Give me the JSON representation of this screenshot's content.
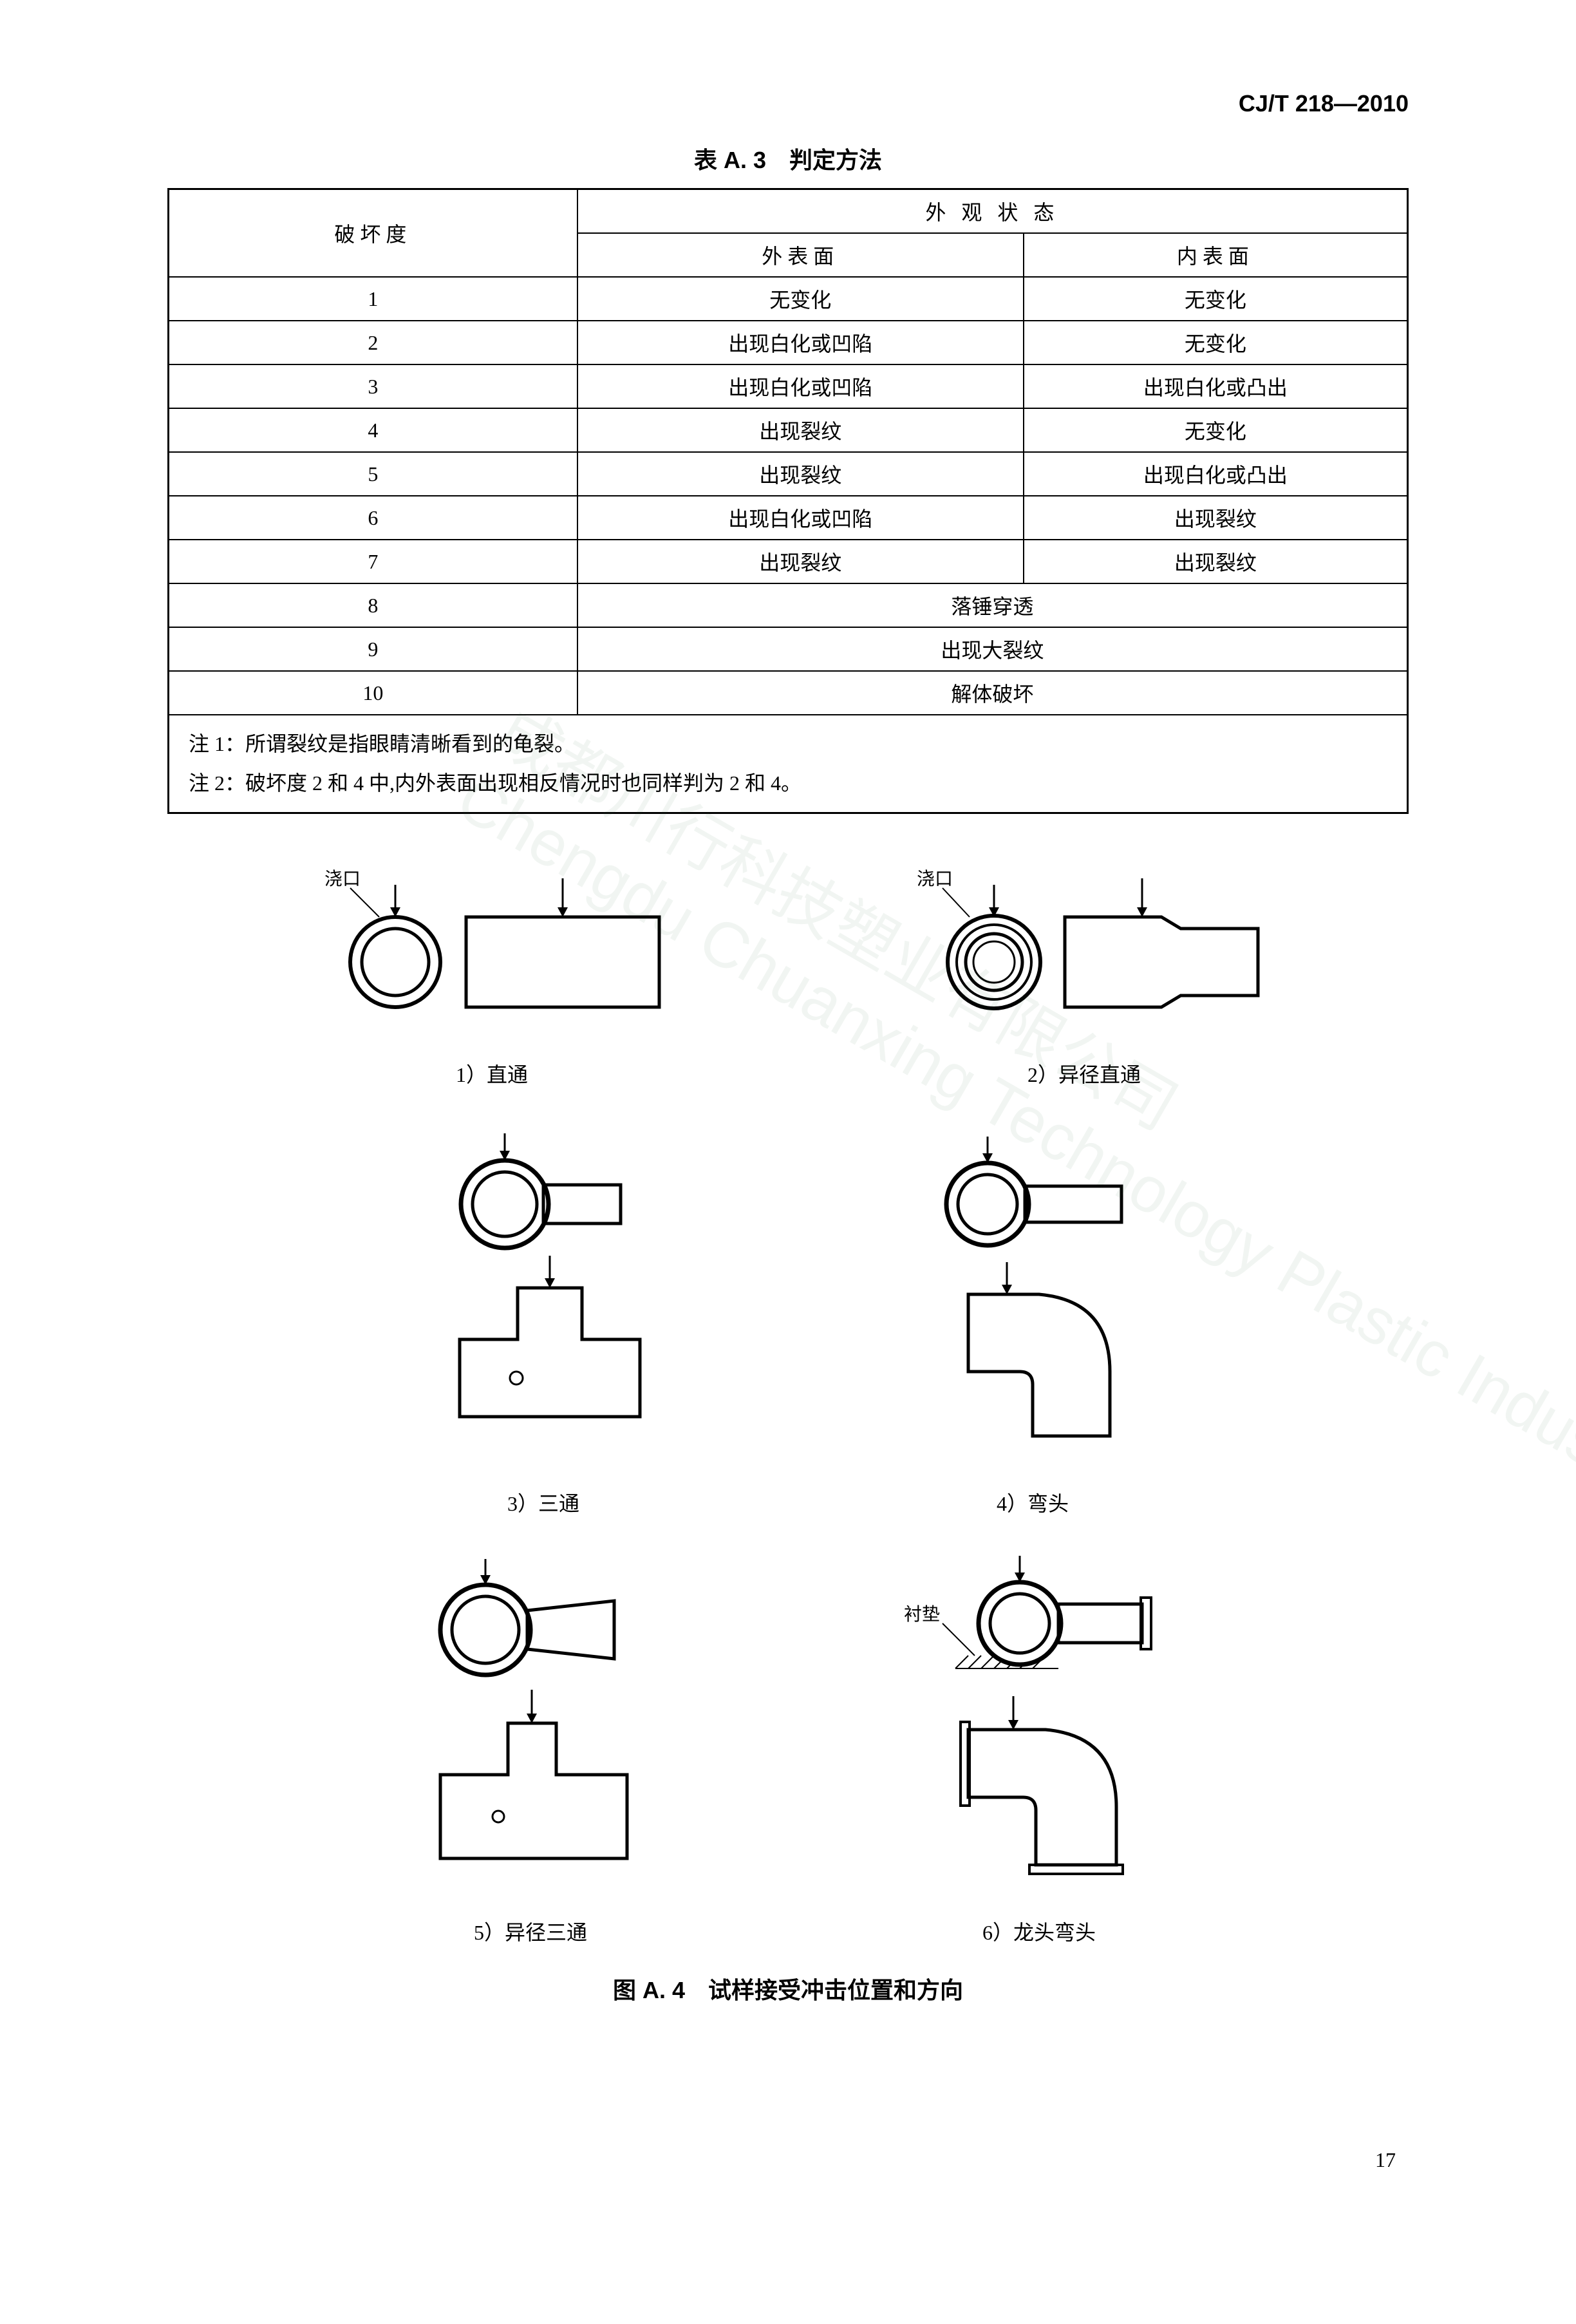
{
  "standard_code": "CJ/T 218—2010",
  "table": {
    "title": "表 A. 3　判定方法",
    "header_col1": "破坏度",
    "header_col2": "外 观 状 态",
    "subheader_outer": "外表面",
    "subheader_inner": "内表面",
    "rows": [
      {
        "level": "1",
        "outer": "无变化",
        "inner": "无变化"
      },
      {
        "level": "2",
        "outer": "出现白化或凹陷",
        "inner": "无变化"
      },
      {
        "level": "3",
        "outer": "出现白化或凹陷",
        "inner": "出现白化或凸出"
      },
      {
        "level": "4",
        "outer": "出现裂纹",
        "inner": "无变化"
      },
      {
        "level": "5",
        "outer": "出现裂纹",
        "inner": "出现白化或凸出"
      },
      {
        "level": "6",
        "outer": "出现白化或凹陷",
        "inner": "出现裂纹"
      },
      {
        "level": "7",
        "outer": "出现裂纹",
        "inner": "出现裂纹"
      }
    ],
    "spanned_rows": [
      {
        "level": "8",
        "text": "落锤穿透"
      },
      {
        "level": "9",
        "text": "出现大裂纹"
      },
      {
        "level": "10",
        "text": "解体破坏"
      }
    ],
    "note1": "注 1：所谓裂纹是指眼睛清晰看到的龟裂。",
    "note2": "注 2：破坏度 2 和 4 中,内外表面出现相反情况时也同样判为 2 和 4。"
  },
  "diagrams": {
    "gate_label": "浇口",
    "liner_label": "衬垫",
    "items": [
      {
        "caption": "1）直通"
      },
      {
        "caption": "2）异径直通"
      },
      {
        "caption": "3）三通"
      },
      {
        "caption": "4）弯头"
      },
      {
        "caption": "5）异径三通"
      },
      {
        "caption": "6）龙头弯头"
      }
    ]
  },
  "figure_title": "图 A. 4　试样接受冲击位置和方向",
  "page_number": "17",
  "colors": {
    "stroke": "#000000",
    "fill": "#ffffff"
  }
}
